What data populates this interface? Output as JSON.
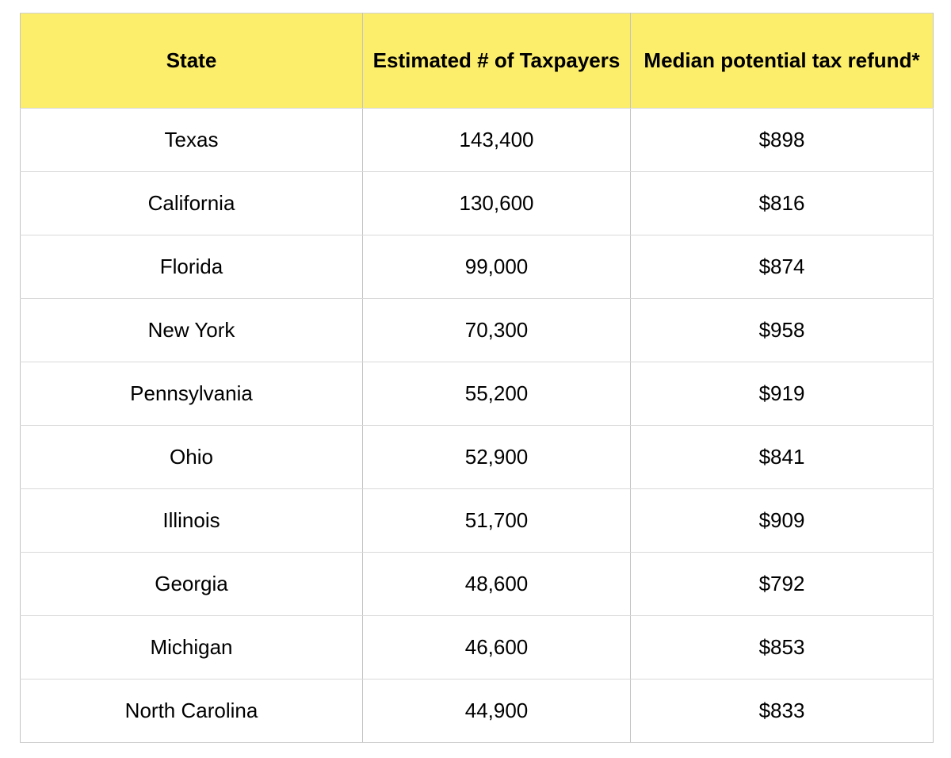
{
  "table": {
    "columns": [
      {
        "key": "state",
        "label": "State"
      },
      {
        "key": "taxpayers",
        "label": "Estimated # of Taxpayers"
      },
      {
        "key": "refund",
        "label": "Median potential tax refund*"
      }
    ],
    "rows": [
      {
        "state": "Texas",
        "taxpayers": "143,400",
        "refund": "$898"
      },
      {
        "state": "California",
        "taxpayers": "130,600",
        "refund": "$816"
      },
      {
        "state": "Florida",
        "taxpayers": "99,000",
        "refund": "$874"
      },
      {
        "state": "New York",
        "taxpayers": "70,300",
        "refund": "$958"
      },
      {
        "state": "Pennsylvania",
        "taxpayers": "55,200",
        "refund": "$919"
      },
      {
        "state": "Ohio",
        "taxpayers": "52,900",
        "refund": "$841"
      },
      {
        "state": "Illinois",
        "taxpayers": "51,700",
        "refund": "$909"
      },
      {
        "state": "Georgia",
        "taxpayers": "48,600",
        "refund": "$792"
      },
      {
        "state": "Michigan",
        "taxpayers": "46,600",
        "refund": "$853"
      },
      {
        "state": "North Carolina",
        "taxpayers": "44,900",
        "refund": "$833"
      }
    ]
  },
  "chart_data": {
    "type": "table",
    "title": "",
    "columns": [
      "State",
      "Estimated # of Taxpayers",
      "Median potential tax refund*"
    ],
    "categories": [
      "Texas",
      "California",
      "Florida",
      "New York",
      "Pennsylvania",
      "Ohio",
      "Illinois",
      "Georgia",
      "Michigan",
      "North Carolina"
    ],
    "series": [
      {
        "name": "Estimated # of Taxpayers",
        "values": [
          143400,
          130600,
          99000,
          70300,
          55200,
          52900,
          51700,
          48600,
          46600,
          44900
        ]
      },
      {
        "name": "Median potential tax refund (USD)",
        "values": [
          898,
          816,
          874,
          958,
          919,
          841,
          909,
          792,
          853,
          833
        ]
      }
    ],
    "layout_hints": {
      "header_highlighted": true,
      "grid": true
    }
  },
  "colors": {
    "header_bg": "#fcee6b",
    "border_vertical": "#c3c3c3",
    "border_horizontal": "#d9d9d9",
    "text": "#000000",
    "page_bg": "#ffffff"
  }
}
